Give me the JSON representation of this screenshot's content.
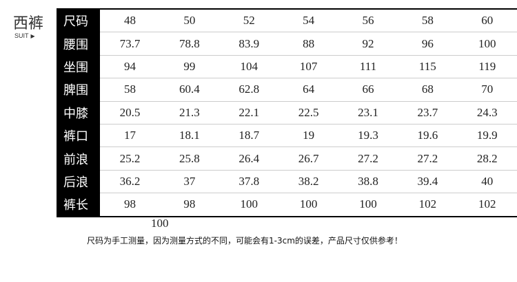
{
  "title": "西裤",
  "subtitle": "SUIT",
  "rows": [
    {
      "label": "尺码",
      "values": [
        "48",
        "50",
        "52",
        "54",
        "56",
        "58",
        "60"
      ]
    },
    {
      "label": "腰围",
      "values": [
        "73.7",
        "78.8",
        "83.9",
        "88",
        "92",
        "96",
        "100"
      ]
    },
    {
      "label": "坐围",
      "values": [
        "94",
        "99",
        "104",
        "107",
        "111",
        "115",
        "119"
      ]
    },
    {
      "label": "脾围",
      "values": [
        "58",
        "60.4",
        "62.8",
        "64",
        "66",
        "68",
        "70"
      ]
    },
    {
      "label": "中膝",
      "values": [
        "20.5",
        "21.3",
        "22.1",
        "22.5",
        "23.1",
        "23.7",
        "24.3"
      ]
    },
    {
      "label": "裤口",
      "values": [
        "17",
        "18.1",
        "18.7",
        "19",
        "19.3",
        "19.6",
        "19.9"
      ]
    },
    {
      "label": "前浪",
      "values": [
        "25.2",
        "25.8",
        "26.4",
        "26.7",
        "27.2",
        "27.2",
        "28.2"
      ]
    },
    {
      "label": "后浪",
      "values": [
        "36.2",
        "37",
        "37.8",
        "38.2",
        "38.8",
        "39.4",
        "40"
      ]
    },
    {
      "label": "裤长",
      "values": [
        "98",
        "98",
        "100",
        "100",
        "100",
        "102",
        "102"
      ]
    }
  ],
  "stray_value": "100",
  "note": "尺码为手工测量，因为测量方式的不同，可能会有1-3cm的误差，产品尺寸仅供参考！"
}
